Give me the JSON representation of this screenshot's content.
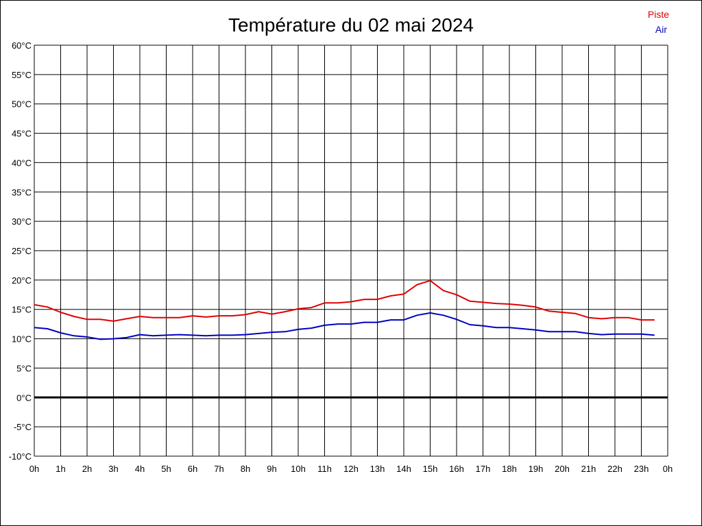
{
  "chart_data": {
    "type": "line",
    "title": "Température du 02 mai 2024",
    "x_tick_labels": [
      "0h",
      "1h",
      "2h",
      "3h",
      "4h",
      "5h",
      "6h",
      "7h",
      "8h",
      "9h",
      "10h",
      "11h",
      "12h",
      "13h",
      "14h",
      "15h",
      "16h",
      "17h",
      "18h",
      "19h",
      "20h",
      "21h",
      "22h",
      "23h",
      "0h"
    ],
    "y_tick_labels": [
      "60°C",
      "55°C",
      "50°C",
      "45°C",
      "40°C",
      "35°C",
      "30°C",
      "25°C",
      "20°C",
      "15°C",
      "10°C",
      "5°C",
      "0°C",
      "-5°C",
      "-10°C"
    ],
    "ylim": [
      -10,
      60
    ],
    "xlim": [
      0,
      24
    ],
    "grid": true,
    "legend_position": "top-right",
    "x": [
      0,
      0.5,
      1,
      1.5,
      2,
      2.5,
      3,
      3.5,
      4,
      4.5,
      5,
      5.5,
      6,
      6.5,
      7,
      7.5,
      8,
      8.5,
      9,
      9.5,
      10,
      10.5,
      11,
      11.5,
      12,
      12.5,
      13,
      13.5,
      14,
      14.5,
      15,
      15.5,
      16,
      16.5,
      17,
      17.5,
      18,
      18.5,
      19,
      19.5,
      20,
      20.5,
      21,
      21.5,
      22,
      22.5,
      23,
      23.5
    ],
    "series": [
      {
        "name": "Piste",
        "color": "#e00000",
        "values": [
          15.8,
          15.4,
          14.5,
          13.8,
          13.3,
          13.3,
          13.0,
          13.4,
          13.8,
          13.6,
          13.6,
          13.6,
          13.9,
          13.7,
          13.9,
          13.9,
          14.1,
          14.6,
          14.2,
          14.6,
          15.1,
          15.3,
          16.1,
          16.1,
          16.3,
          16.7,
          16.7,
          17.3,
          17.6,
          19.2,
          19.9,
          18.2,
          17.5,
          16.4,
          16.2,
          16.0,
          15.9,
          15.7,
          15.4,
          14.7,
          14.5,
          14.3,
          13.6,
          13.4,
          13.6,
          13.6,
          13.2,
          13.2
        ]
      },
      {
        "name": "Air",
        "color": "#0000c0",
        "values": [
          11.9,
          11.7,
          11.0,
          10.5,
          10.3,
          9.9,
          10.0,
          10.2,
          10.7,
          10.5,
          10.6,
          10.7,
          10.6,
          10.5,
          10.6,
          10.6,
          10.7,
          10.9,
          11.1,
          11.2,
          11.6,
          11.8,
          12.3,
          12.5,
          12.5,
          12.8,
          12.8,
          13.2,
          13.2,
          14.0,
          14.4,
          14.0,
          13.3,
          12.4,
          12.2,
          11.9,
          11.9,
          11.7,
          11.5,
          11.2,
          11.2,
          11.2,
          10.9,
          10.7,
          10.8,
          10.8,
          10.8,
          10.6
        ]
      }
    ]
  }
}
